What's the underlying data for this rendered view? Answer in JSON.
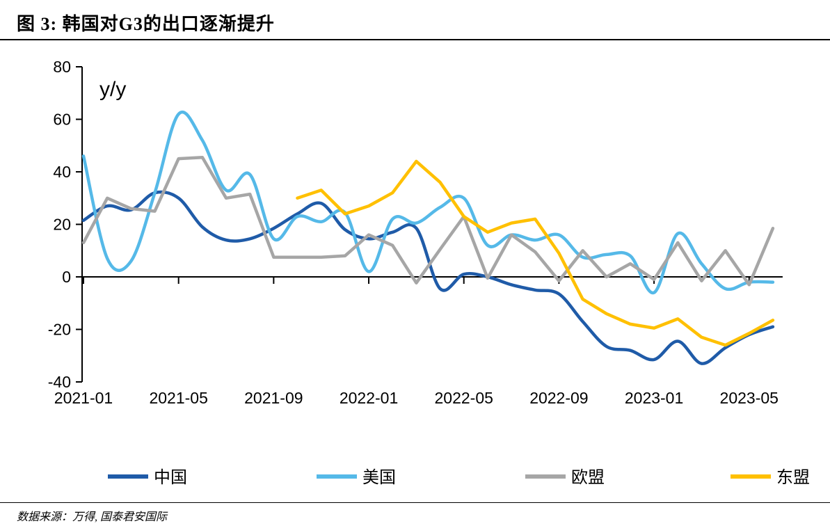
{
  "title": "图 3:  韩国对G3的出口逐渐提升",
  "source_note": "数据来源：万得, 国泰君安国际",
  "axis_annotation": "y/y",
  "colors": {
    "china_blue": "#1F5BA8",
    "us_lightblue": "#55B9E8",
    "eu_gray": "#A6A6A6",
    "asean_yellow": "#FFC000",
    "axis": "#000000"
  },
  "chart_data": {
    "type": "line",
    "x": [
      "2021-01",
      "2021-02",
      "2021-03",
      "2021-04",
      "2021-05",
      "2021-06",
      "2021-07",
      "2021-08",
      "2021-09",
      "2021-10",
      "2021-11",
      "2021-12",
      "2022-01",
      "2022-02",
      "2022-03",
      "2022-04",
      "2022-05",
      "2022-06",
      "2022-07",
      "2022-08",
      "2022-09",
      "2022-10",
      "2022-11",
      "2022-12",
      "2023-01",
      "2023-02",
      "2023-03",
      "2023-04",
      "2023-05",
      "2023-06"
    ],
    "x_tick_labels": [
      "2021-01",
      "2021-05",
      "2021-09",
      "2022-01",
      "2022-05",
      "2022-09",
      "2023-01",
      "2023-05"
    ],
    "x_tick_indices": [
      0,
      4,
      8,
      12,
      16,
      20,
      24,
      28
    ],
    "ylabel_annotation": "y/y",
    "ylim": [
      -40,
      80
    ],
    "yticks": [
      80,
      60,
      40,
      20,
      0,
      -20,
      -40
    ],
    "grid": false,
    "legend_position": "bottom",
    "series": [
      {
        "name": "中国",
        "color": "#1F5BA8",
        "smooth": true,
        "values": [
          21.5,
          27,
          25.5,
          32,
          30,
          19,
          14,
          14.5,
          18.5,
          24,
          28,
          18,
          14.5,
          17,
          18.5,
          -4.5,
          1,
          0,
          -3,
          -5,
          -6.5,
          -17,
          -26.5,
          -28,
          -31.5,
          -24.5,
          -33,
          -27,
          -22,
          -19
        ]
      },
      {
        "name": "美国",
        "color": "#55B9E8",
        "smooth": true,
        "values": [
          46,
          7,
          6,
          32,
          62,
          52,
          33,
          39,
          14.5,
          23,
          21,
          24.5,
          2,
          22,
          20.5,
          26.5,
          30,
          12,
          16,
          14,
          16,
          7.5,
          8.5,
          8,
          -6,
          16.5,
          5,
          -4.5,
          -2,
          -2
        ]
      },
      {
        "name": "欧盟",
        "color": "#A6A6A6",
        "smooth": false,
        "values": [
          13,
          30,
          26,
          25,
          45,
          45.5,
          30,
          31.5,
          7.5,
          7.5,
          7.5,
          8,
          16,
          12,
          -2.3,
          10.5,
          23,
          -0.5,
          16,
          9.5,
          -1.5,
          10,
          0,
          5,
          -1,
          13,
          -1.5,
          10,
          -3,
          18.5
        ]
      },
      {
        "name": "东盟",
        "color": "#FFC000",
        "smooth": false,
        "values": [
          null,
          null,
          null,
          null,
          null,
          null,
          null,
          null,
          null,
          30,
          33,
          24,
          27,
          32,
          44,
          36,
          23,
          17,
          20.5,
          22,
          9,
          -8.5,
          -14,
          -18,
          -19.5,
          -16,
          -23,
          -26,
          -21.5,
          -16.5
        ]
      }
    ]
  }
}
